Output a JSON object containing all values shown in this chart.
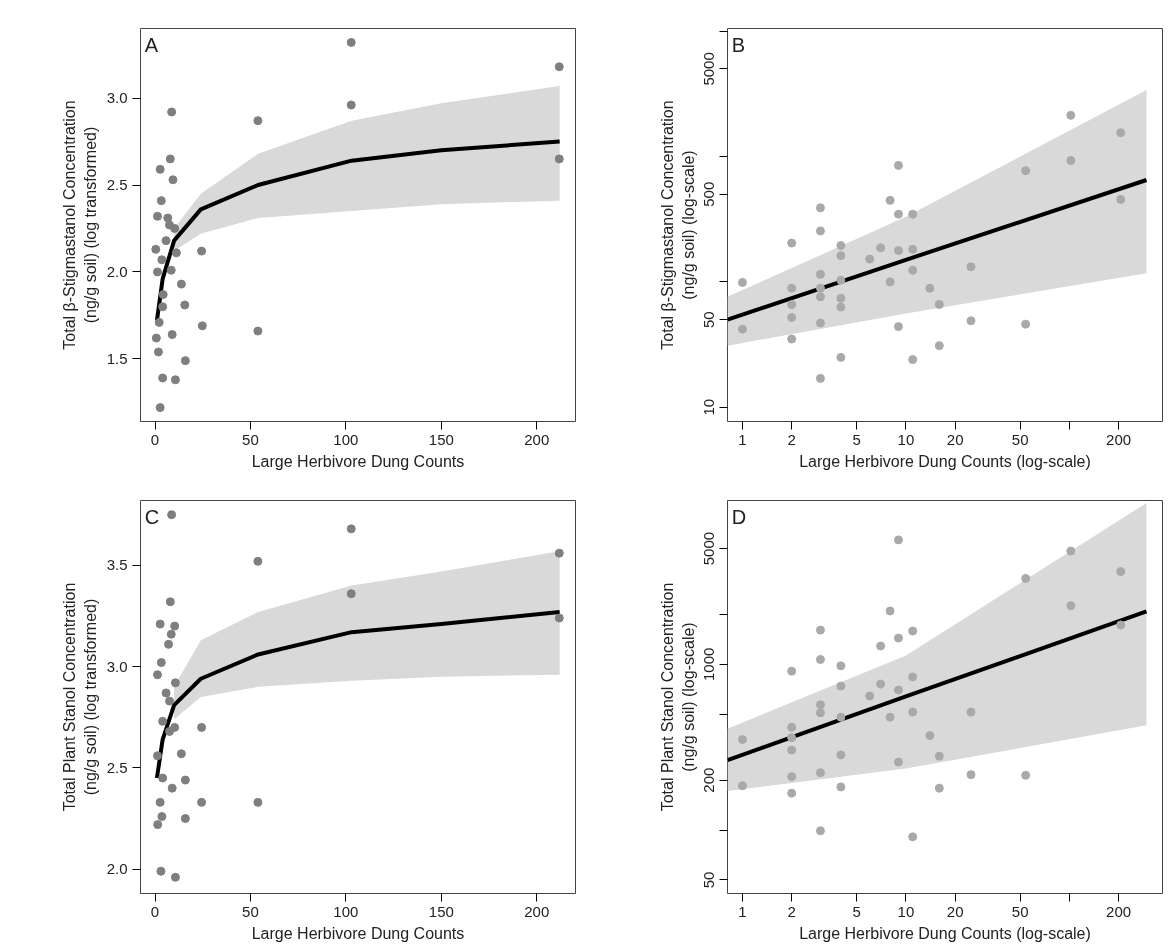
{
  "chart_data": [
    {
      "type": "scatter",
      "xlabel": "Large Herbivore Dung Counts",
      "ylabel": "Total β-Stigmastanol Concentration\n(ng/g soil) (log transformed)",
      "annotations": [
        "A"
      ],
      "xlim": [
        -7.6,
        220.3
      ],
      "ylim": [
        1.14,
        3.4
      ],
      "xticks": [
        0,
        50,
        100,
        150,
        200
      ],
      "yticks": [
        1.5,
        {
          "value": 2.0,
          "label": "2.0"
        },
        2.5,
        {
          "value": 3.0,
          "label": "3.0"
        }
      ],
      "grid": false,
      "series": [
        {
          "marker": "circle",
          "color": "#7f7f7f",
          "x": [
            102.8,
            211.8,
            102.8,
            8.7,
            53.9,
            8.0,
            211.8,
            2.7,
            9.4,
            3.3,
            1.3,
            24.4,
            13.8,
            15.6,
            24.8,
            53.9,
            9.0,
            0.7,
            15.9,
            1.8,
            4.0,
            10.7,
            2.7,
            1.3,
            3.6,
            5.8,
            7.6,
            10.3,
            8.5,
            4.3,
            4.0,
            2.2,
            11.2,
            0.4,
            6.7
          ],
          "values": [
            3.32,
            3.18,
            2.96,
            2.92,
            2.87,
            2.65,
            2.65,
            2.59,
            2.53,
            2.41,
            2.32,
            2.12,
            1.93,
            1.81,
            1.69,
            1.66,
            1.64,
            1.62,
            1.49,
            1.54,
            1.39,
            1.38,
            1.22,
            2.0,
            2.07,
            2.18,
            2.27,
            2.25,
            2.01,
            1.87,
            1.8,
            1.71,
            2.11,
            2.13,
            2.31
          ]
        },
        {
          "type": "line",
          "color": "#000000",
          "x": [
            1,
            4,
            10,
            24,
            54,
            103,
            150,
            212
          ],
          "values": [
            1.72,
            1.96,
            2.18,
            2.36,
            2.5,
            2.64,
            2.7,
            2.75
          ],
          "lower": [
            null,
            null,
            2.12,
            2.22,
            2.31,
            2.35,
            2.39,
            2.41
          ],
          "upper": [
            null,
            null,
            2.25,
            2.45,
            2.68,
            2.87,
            2.97,
            3.07
          ]
        }
      ]
    },
    {
      "type": "scatter",
      "xlabel": "Large Herbivore Dung Counts (log-scale)",
      "ylabel": "Total β-Stigmastanol Concentration\n(ng/g soil) (log-scale)",
      "annotations": [
        "B"
      ],
      "log": "xy",
      "xlim": [
        0.81,
        371
      ],
      "ylim": [
        7.7,
        10500
      ],
      "xticks": [
        1,
        2,
        5,
        10,
        20,
        50,
        {
          "value": 100,
          "label": null
        },
        200
      ],
      "yticks": [
        10,
        50,
        {
          "value": 100,
          "label": null
        },
        500,
        {
          "value": 1000,
          "label": null
        },
        5000,
        {
          "value": 10000,
          "label": null
        }
      ],
      "grid": false,
      "series": [
        {
          "marker": "circle",
          "color": "#a9a9a9",
          "x": [
            1,
            1,
            2,
            2,
            2,
            2,
            2,
            3,
            3,
            3,
            3,
            3,
            3,
            3,
            4,
            4,
            4,
            4,
            4,
            4,
            6,
            7,
            8,
            8,
            9,
            9,
            9,
            9,
            11,
            11,
            11,
            11,
            14,
            16,
            16,
            25,
            25,
            54,
            54,
            102,
            102,
            206,
            206
          ],
          "values": [
            99,
            42,
            204,
            89,
            66,
            52,
            35,
            390,
            255,
            115,
            89,
            76,
            47,
            17,
            195,
            162,
            103,
            74,
            63,
            25,
            152,
            187,
            447,
            100,
            850,
            347,
            178,
            44,
            347,
            182,
            124,
            24,
            89,
            66,
            31,
            132,
            49,
            771,
            46,
            2130,
            930,
            1550,
            455
          ]
        },
        {
          "type": "line",
          "color": "#000000",
          "x": [
            0.81,
            10,
            296
          ],
          "values": [
            50,
            150,
            650
          ],
          "lower": [
            31,
            56,
            117
          ],
          "upper": [
            76,
            331,
            3400
          ]
        }
      ]
    },
    {
      "type": "scatter",
      "xlabel": "Large Herbivore Dung Counts",
      "ylabel": "Total Plant Stanol Concentration\n(ng/g soil) (log transformed)",
      "annotations": [
        "C"
      ],
      "xlim": [
        -7.6,
        220.3
      ],
      "ylim": [
        1.88,
        3.82
      ],
      "xticks": [
        0,
        50,
        100,
        150,
        200
      ],
      "yticks": [
        {
          "value": 2.0,
          "label": "2.0"
        },
        2.5,
        {
          "value": 3.0,
          "label": "3.0"
        },
        3.5
      ],
      "grid": false,
      "series": [
        {
          "marker": "circle",
          "color": "#7f7f7f",
          "x": [
            8.7,
            102.8,
            53.9,
            211.8,
            102.8,
            8.0,
            2.7,
            10.3,
            8.5,
            7.1,
            3.3,
            1.3,
            10.7,
            211.8,
            5.8,
            7.6,
            4.0,
            10.3,
            24.4,
            7.6,
            13.8,
            1.3,
            4.0,
            15.9,
            9.0,
            24.4,
            53.9,
            2.7,
            3.6,
            15.9,
            1.4,
            3.1,
            10.7
          ],
          "values": [
            3.75,
            3.68,
            3.52,
            3.56,
            3.36,
            3.32,
            3.21,
            3.2,
            3.16,
            3.11,
            3.02,
            2.96,
            2.92,
            3.24,
            2.87,
            2.83,
            2.73,
            2.7,
            2.7,
            2.68,
            2.57,
            2.56,
            2.45,
            2.44,
            2.4,
            2.33,
            2.33,
            2.33,
            2.26,
            2.25,
            2.22,
            1.99,
            1.96
          ]
        },
        {
          "type": "line",
          "color": "#000000",
          "x": [
            1,
            4,
            10,
            24,
            54,
            103,
            150,
            212
          ],
          "values": [
            2.45,
            2.64,
            2.81,
            2.94,
            3.06,
            3.17,
            3.21,
            3.27
          ],
          "lower": [
            null,
            null,
            2.74,
            2.85,
            2.9,
            2.93,
            2.95,
            2.96
          ],
          "upper": [
            null,
            null,
            2.9,
            3.13,
            3.27,
            3.4,
            3.47,
            3.57
          ]
        }
      ]
    },
    {
      "type": "scatter",
      "xlabel": "Large Herbivore Dung Counts (log-scale)",
      "ylabel": "Total Plant Stanol Concentration\n(ng/g soil) (log-scale)",
      "annotations": [
        "D"
      ],
      "log": "xy",
      "xlim": [
        0.81,
        371
      ],
      "ylim": [
        41.4,
        9750
      ],
      "xticks": [
        1,
        2,
        5,
        10,
        20,
        50,
        {
          "value": 100,
          "label": null
        },
        200
      ],
      "yticks": [
        50,
        {
          "value": 100,
          "label": null
        },
        200,
        {
          "value": 500,
          "label": null
        },
        1000,
        {
          "value": 2000,
          "label": null
        },
        5000
      ],
      "grid": false,
      "series": [
        {
          "marker": "circle",
          "color": "#a9a9a9",
          "x": [
            9,
            102,
            206,
            54,
            102,
            8,
            3,
            9,
            11,
            206,
            7,
            3,
            2,
            4,
            4,
            11,
            7,
            6,
            9,
            3,
            3,
            4,
            8,
            11,
            25,
            2,
            2,
            1,
            14,
            2,
            4,
            16,
            9,
            3,
            2,
            25,
            54,
            1,
            4,
            16,
            2,
            3,
            11
          ],
          "values": [
            5640,
            4830,
            3630,
            3300,
            2260,
            2100,
            1610,
            1440,
            1590,
            1730,
            1290,
            1070,
            910,
            980,
            740,
            840,
            760,
            645,
            700,
            570,
            510,
            480,
            480,
            515,
            515,
            417,
            361,
            352,
            372,
            304,
            284,
            279,
            257,
            222,
            210,
            216,
            214,
            185,
            182,
            179,
            167,
            99,
            91
          ]
        },
        {
          "type": "line",
          "color": "#000000",
          "x": [
            0.81,
            10,
            296
          ],
          "values": [
            264,
            640,
            2090
          ],
          "lower": [
            172,
            235,
            429
          ],
          "upper": [
            409,
            1130,
            9420
          ]
        }
      ]
    }
  ]
}
